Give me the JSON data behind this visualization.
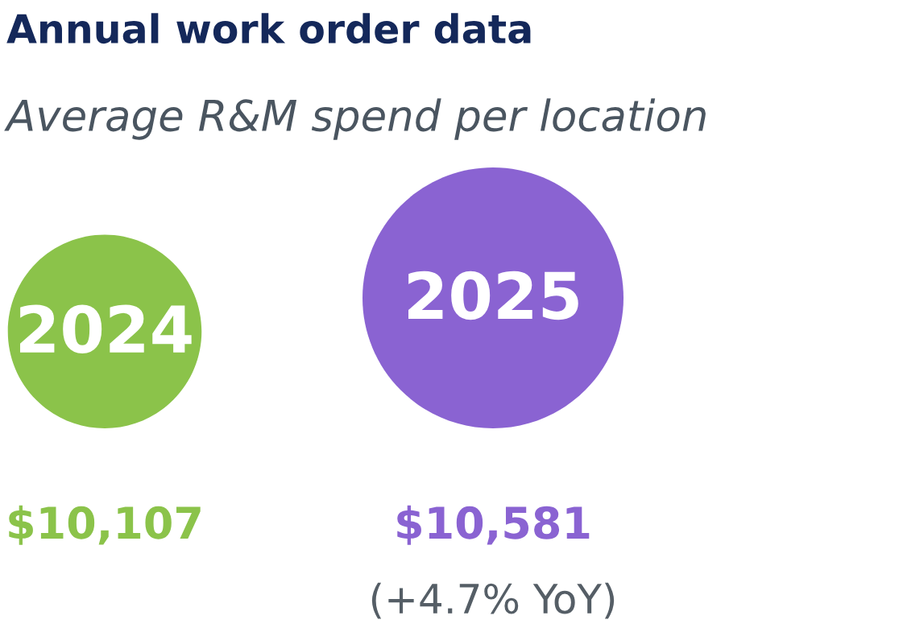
{
  "chart_data": {
    "type": "other",
    "title": "Annual work order data",
    "subtitle": "Average R&M spend per location",
    "categories": [
      "2024",
      "2025"
    ],
    "values": [
      10107,
      10581
    ],
    "value_labels": [
      "$10,107",
      "$10,581"
    ],
    "colors": [
      "#8bc34a",
      "#8a63d2"
    ],
    "annotations": [
      "(+4.7% YoY)"
    ]
  }
}
